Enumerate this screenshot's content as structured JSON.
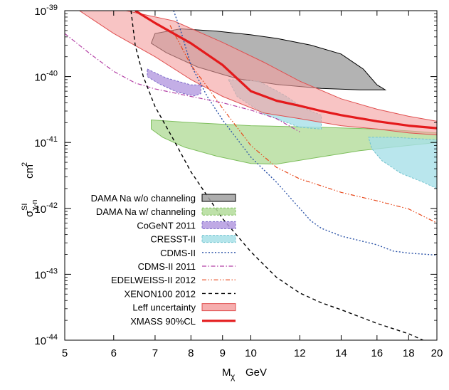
{
  "chart_data": {
    "type": "line",
    "x_scale": "log",
    "y_scale": "log",
    "xlim": [
      5,
      20
    ],
    "ylim": [
      1e-44,
      1e-39
    ],
    "grid": false,
    "legend_position": "bottom-left",
    "x_ticks": [
      5,
      6,
      7,
      8,
      9,
      10,
      12,
      14,
      16,
      18,
      20
    ],
    "x_tick_labels": [
      "5",
      "6",
      "7",
      "8",
      "9",
      "10",
      "12",
      "14",
      "16",
      "18",
      "20"
    ],
    "y_ticks": [
      {
        "base": "10",
        "exp": "-44",
        "value": 1e-44
      },
      {
        "base": "10",
        "exp": "-43",
        "value": 1e-43
      },
      {
        "base": "10",
        "exp": "-42",
        "value": 1e-42
      },
      {
        "base": "10",
        "exp": "-41",
        "value": 1e-41
      },
      {
        "base": "10",
        "exp": "-40",
        "value": 1e-40
      },
      {
        "base": "10",
        "exp": "-39",
        "value": 1e-39
      }
    ],
    "xlabel": {
      "main": "M",
      "sub": "χ",
      "unit": "GeV"
    },
    "ylabel": {
      "main": "σ",
      "sup": "SI",
      "sub": "χ-n",
      "unit": "cm",
      "unit_sup": "2"
    },
    "regions": [
      {
        "name": "DAMA Na w/o channeling",
        "fill": "#a0a0a0",
        "stroke": "#000000",
        "points": [
          [
            7.0,
            4.5e-40
          ],
          [
            7.7,
            5.3e-40
          ],
          [
            8.8,
            4.9e-40
          ],
          [
            10.0,
            4.3e-40
          ],
          [
            11.0,
            3.8e-40
          ],
          [
            12.5,
            3e-40
          ],
          [
            14.0,
            2.2e-40
          ],
          [
            15.2,
            1.3e-40
          ],
          [
            16.0,
            7.5e-41
          ],
          [
            16.5,
            6.3e-41
          ],
          [
            15.0,
            6.3e-41
          ],
          [
            13.0,
            6.6e-41
          ],
          [
            11.0,
            7.6e-41
          ],
          [
            9.5,
            9.3e-41
          ],
          [
            8.2,
            1.4e-40
          ],
          [
            7.3,
            2.3e-40
          ],
          [
            6.9,
            3.2e-40
          ]
        ]
      },
      {
        "name": "DAMA Na w/ channeling",
        "fill": "#b3dc9a",
        "stroke": "#7fbf5e",
        "points": [
          [
            6.9,
            2.2e-41
          ],
          [
            8.0,
            2e-41
          ],
          [
            10.0,
            1.8e-41
          ],
          [
            13.0,
            1.7e-41
          ],
          [
            16.0,
            1.6e-41
          ],
          [
            18.0,
            1.5e-41
          ],
          [
            20.0,
            1.4e-41
          ],
          [
            20.0,
            1e-41
          ],
          [
            18.0,
            9e-42
          ],
          [
            15.0,
            7.5e-42
          ],
          [
            12.5,
            5.7e-42
          ],
          [
            11.0,
            4.7e-42
          ],
          [
            10.0,
            4.8e-42
          ],
          [
            8.8,
            6.2e-42
          ],
          [
            7.8,
            8.5e-42
          ],
          [
            7.2,
            1.2e-41
          ],
          [
            6.9,
            1.6e-41
          ]
        ]
      },
      {
        "name": "CoGeNT 2011",
        "fill": "#b49ae0",
        "stroke": "#7b68c8",
        "dashed": true,
        "points": [
          [
            6.8,
            1.3e-40
          ],
          [
            7.3,
            9.5e-41
          ],
          [
            8.0,
            7.5e-41
          ],
          [
            8.3,
            7.5e-41
          ],
          [
            8.3,
            5.5e-41
          ],
          [
            8.1,
            5.1e-41
          ],
          [
            7.6,
            5.8e-41
          ],
          [
            7.1,
            7.8e-41
          ],
          [
            6.8,
            1e-40
          ]
        ]
      },
      {
        "name": "CRESST-II",
        "fill": "#a7e0e8",
        "stroke": "#73c3cf",
        "dashed": true,
        "points": [
          [
            9.2,
            9e-41
          ],
          [
            10.3,
            8.5e-41
          ],
          [
            11.3,
            5.3e-41
          ],
          [
            12.2,
            3.3e-41
          ],
          [
            13.0,
            2.6e-41
          ],
          [
            13.0,
            1.6e-41
          ],
          [
            12.0,
            1.7e-41
          ],
          [
            10.5,
            2.7e-41
          ],
          [
            9.5,
            5e-41
          ]
        ]
      },
      {
        "name": "CRESST-II",
        "fill": "#a7e0e8",
        "stroke": "#73c3cf",
        "dashed": true,
        "points": [
          [
            15.5,
            1.2e-41
          ],
          [
            17.0,
            1.2e-41
          ],
          [
            20.0,
            1.1e-41
          ],
          [
            20.0,
            2e-42
          ],
          [
            19.0,
            2.5e-42
          ],
          [
            17.5,
            3.4e-42
          ],
          [
            16.3,
            5.3e-42
          ],
          [
            15.7,
            8e-42
          ]
        ]
      },
      {
        "name": "Leff uncertainty",
        "fill": "#f4a0a0",
        "stroke": "#e05050",
        "opacity": 0.62,
        "points": [
          [
            5.28,
            1e-39
          ],
          [
            6.28,
            1e-39
          ],
          [
            7.5,
            7e-40
          ],
          [
            9.0,
            3.3e-40
          ],
          [
            10.5,
            1.65e-40
          ],
          [
            12.0,
            8.5e-41
          ],
          [
            14.0,
            4.6e-41
          ],
          [
            16.0,
            3.2e-41
          ],
          [
            18.0,
            2.5e-41
          ],
          [
            20.0,
            2.1e-41
          ],
          [
            20.0,
            1.3e-41
          ],
          [
            18.0,
            1.4e-41
          ],
          [
            16.0,
            1.6e-41
          ],
          [
            14.0,
            1.8e-41
          ],
          [
            12.0,
            2.3e-41
          ],
          [
            10.5,
            2.8e-41
          ],
          [
            9.0,
            5e-41
          ],
          [
            8.0,
            9e-41
          ],
          [
            7.0,
            2e-40
          ],
          [
            6.0,
            4.5e-40
          ]
        ]
      }
    ],
    "series": [
      {
        "name": "CDMS-II",
        "color": "#2b53a8",
        "dash": "2,2.5",
        "width": 1.4,
        "points": [
          [
            7.5,
            1e-39
          ],
          [
            7.7,
            5e-40
          ],
          [
            8.0,
            1.5e-40
          ],
          [
            8.5,
            5e-41
          ],
          [
            9.0,
            2.2e-41
          ],
          [
            10.0,
            6e-42
          ],
          [
            11.0,
            2.5e-42
          ],
          [
            12.5,
            6.5e-43
          ],
          [
            13.0,
            5e-43
          ],
          [
            14.0,
            3.8e-43
          ],
          [
            16.0,
            2.8e-43
          ],
          [
            17.0,
            2.25e-43
          ],
          [
            18.0,
            2.1e-43
          ],
          [
            20.0,
            1.95e-43
          ]
        ]
      },
      {
        "name": "CDMS-II 2011",
        "color": "#b441a6",
        "dash": "6,2.5,1.5,2.5",
        "width": 1.2,
        "points": [
          [
            5.0,
            4.5e-40
          ],
          [
            5.5,
            2.2e-40
          ],
          [
            6.0,
            1.2e-40
          ],
          [
            6.5,
            8e-41
          ],
          [
            7.0,
            6.5e-41
          ],
          [
            8.0,
            5e-41
          ],
          [
            9.0,
            4e-41
          ],
          [
            10.0,
            3.1e-41
          ],
          [
            11.0,
            2.3e-41
          ],
          [
            12.0,
            1.45e-41
          ]
        ]
      },
      {
        "name": "EDELWEISS-II 2012",
        "color": "#e8491c",
        "dash": "6,2.5,1.5,2.5,1.5,2.5",
        "width": 1.2,
        "points": [
          [
            7.4,
            6e-40
          ],
          [
            8.0,
            1.5e-40
          ],
          [
            8.5,
            7e-41
          ],
          [
            9.0,
            3.3e-41
          ],
          [
            10.0,
            9e-42
          ],
          [
            11.0,
            4.2e-42
          ],
          [
            12.0,
            2.8e-42
          ],
          [
            13.0,
            2.2e-42
          ],
          [
            14.0,
            1.75e-42
          ],
          [
            16.0,
            1.3e-42
          ],
          [
            18.0,
            9.8e-43
          ],
          [
            20.0,
            6e-43
          ]
        ]
      },
      {
        "name": "XENON100 2012",
        "color": "#000000",
        "dash": "5,4",
        "width": 1.4,
        "points": [
          [
            6.4,
            1e-39
          ],
          [
            6.5,
            3e-40
          ],
          [
            6.7,
            1e-40
          ],
          [
            7.0,
            3.5e-41
          ],
          [
            7.5,
            1.1e-41
          ],
          [
            8.0,
            3.6e-42
          ],
          [
            9.0,
            7e-43
          ],
          [
            10.0,
            2.2e-43
          ],
          [
            11.0,
            9e-44
          ],
          [
            12.0,
            5.2e-44
          ],
          [
            13.0,
            3.7e-44
          ],
          [
            14.0,
            2.9e-44
          ],
          [
            16.0,
            1.8e-44
          ],
          [
            18.0,
            1.25e-44
          ],
          [
            19.0,
            1e-44
          ]
        ]
      },
      {
        "name": "XMASS 90%CL",
        "color": "#e41a1c",
        "dash": "",
        "width": 3.2,
        "points": [
          [
            6.5,
            1e-39
          ],
          [
            7.0,
            6.5e-40
          ],
          [
            8.0,
            3.2e-40
          ],
          [
            9.0,
            1.5e-40
          ],
          [
            10.0,
            6e-41
          ],
          [
            11.0,
            4.3e-41
          ],
          [
            12.0,
            3.6e-41
          ],
          [
            13.0,
            3e-41
          ],
          [
            14.0,
            2.6e-41
          ],
          [
            16.0,
            2.1e-41
          ],
          [
            18.0,
            1.8e-41
          ],
          [
            20.0,
            1.65e-41
          ]
        ]
      }
    ],
    "legend": [
      {
        "label": "DAMA Na w/o channeling",
        "kind": "box",
        "fill": "#a0a0a0",
        "stroke": "#000000"
      },
      {
        "label": "DAMA Na w/ channeling",
        "kind": "box",
        "fill": "#b3dc9a",
        "stroke": "#7fbf5e",
        "dashed": true
      },
      {
        "label": "CoGeNT 2011",
        "kind": "box",
        "fill": "#b49ae0",
        "stroke": "#7b68c8",
        "dashed": true
      },
      {
        "label": "CRESST-II",
        "kind": "box",
        "fill": "#a7e0e8",
        "stroke": "#73c3cf",
        "dashed": true
      },
      {
        "label": "CDMS-II",
        "kind": "line",
        "color": "#2b53a8",
        "dash": "2,2.5",
        "width": 1.4
      },
      {
        "label": "CDMS-II 2011",
        "kind": "line",
        "color": "#b441a6",
        "dash": "6,2.5,1.5,2.5",
        "width": 1.2
      },
      {
        "label": "EDELWEISS-II 2012",
        "kind": "line",
        "color": "#e8491c",
        "dash": "6,2.5,1.5,2.5,1.5,2.5",
        "width": 1.2
      },
      {
        "label": "XENON100 2012",
        "kind": "line",
        "color": "#000000",
        "dash": "5,4",
        "width": 1.4
      },
      {
        "label": "Leff uncertainty",
        "kind": "box",
        "fill": "#f4a0a0",
        "stroke": "#e05050"
      },
      {
        "label": "XMASS 90%CL",
        "kind": "line",
        "color": "#e41a1c",
        "dash": "",
        "width": 3.2
      }
    ]
  }
}
